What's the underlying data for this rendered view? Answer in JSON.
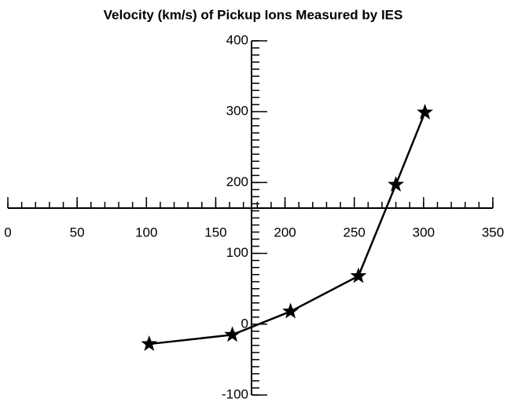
{
  "chart_data": {
    "type": "line",
    "title": "Velocity (km/s) of Pickup Ions Measured by IES",
    "x": [
      102,
      162,
      204,
      253,
      280,
      301
    ],
    "series": [
      {
        "name": null,
        "color": "#000000",
        "marker": "star",
        "values": [
          -28,
          -15,
          18,
          68,
          197,
          299
        ]
      }
    ],
    "xlim": [
      0,
      350
    ],
    "xticks": [
      0,
      50,
      100,
      150,
      200,
      250,
      300,
      350
    ],
    "xminor_step": 10,
    "ylim": [
      -100,
      400
    ],
    "yticks": [
      -100,
      0,
      100,
      200,
      300,
      400
    ],
    "yminor_step": 10,
    "grid": false
  }
}
